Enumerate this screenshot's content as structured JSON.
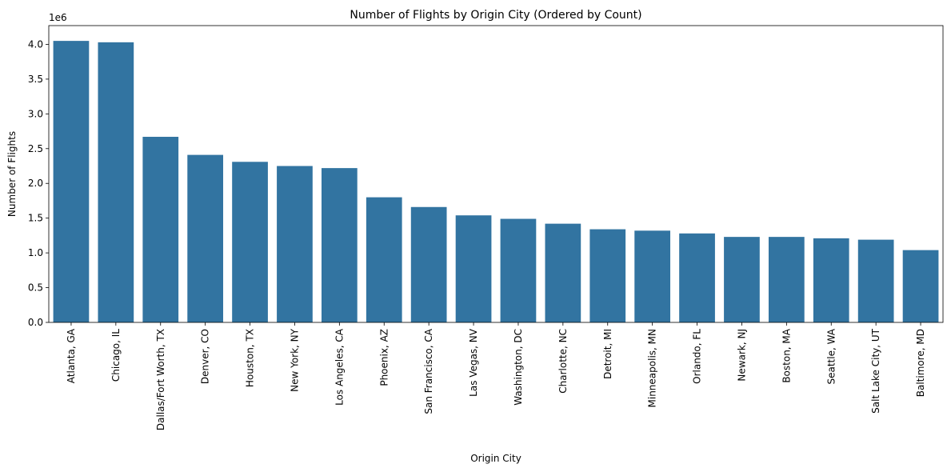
{
  "chart_data": {
    "type": "bar",
    "title": "Number of Flights by Origin City (Ordered by Count)",
    "xlabel": "Origin City",
    "ylabel": "Number of Flights",
    "y_offset_label": "1e6",
    "ylim": [
      0,
      4.27
    ],
    "yticks": [
      "0.0",
      "0.5",
      "1.0",
      "1.5",
      "2.0",
      "2.5",
      "3.0",
      "3.5",
      "4.0"
    ],
    "categories": [
      "Atlanta, GA",
      "Chicago, IL",
      "Dallas/Fort Worth, TX",
      "Denver, CO",
      "Houston, TX",
      "New York, NY",
      "Los Angeles, CA",
      "Phoenix, AZ",
      "San Francisco, CA",
      "Las Vegas, NV",
      "Washington, DC",
      "Charlotte, NC",
      "Detroit, MI",
      "Minneapolis, MN",
      "Orlando, FL",
      "Newark, NJ",
      "Boston, MA",
      "Seattle, WA",
      "Salt Lake City, UT",
      "Baltimore, MD"
    ],
    "values": [
      4.05,
      4.03,
      2.67,
      2.41,
      2.31,
      2.25,
      2.22,
      1.8,
      1.66,
      1.54,
      1.49,
      1.42,
      1.34,
      1.32,
      1.28,
      1.23,
      1.23,
      1.21,
      1.19,
      1.04
    ],
    "grid": false,
    "bar_color": "#3274a1"
  }
}
